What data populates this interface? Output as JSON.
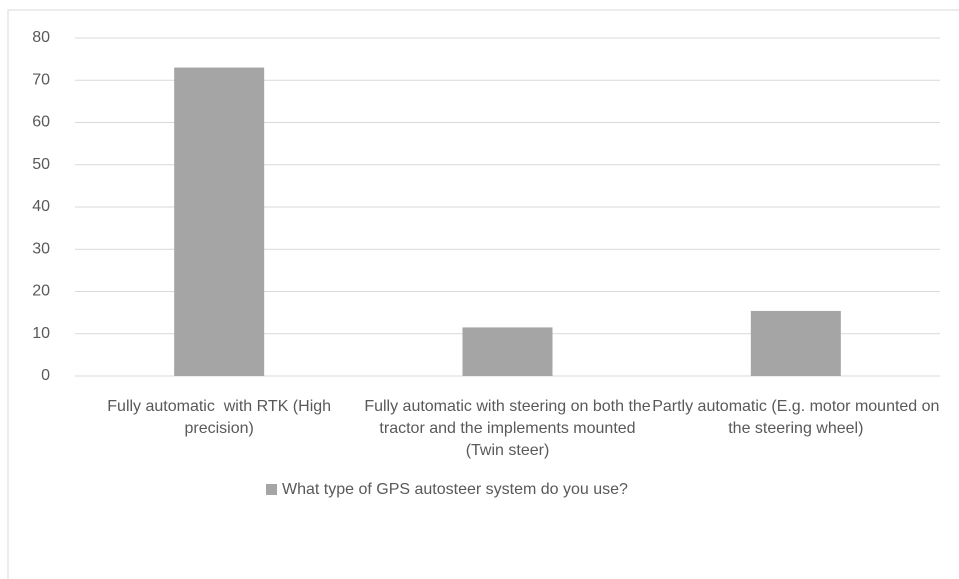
{
  "chart_data": {
    "type": "bar",
    "categories": [
      "Fully automatic  with RTK (High precision)",
      "Fully automatic with steering on both the tractor and the implements mounted (Twin steer)",
      "Partly automatic (E.g. motor mounted on the steering wheel)"
    ],
    "series": [
      {
        "name": "What type of GPS autosteer system do you use?",
        "color": "#a5a5a5",
        "values": [
          73,
          11.5,
          15.4
        ]
      }
    ],
    "ylim": [
      0,
      80
    ],
    "yticks": [
      0,
      10,
      20,
      30,
      40,
      50,
      60,
      70,
      80
    ],
    "grid": true,
    "legend": "bottom"
  }
}
